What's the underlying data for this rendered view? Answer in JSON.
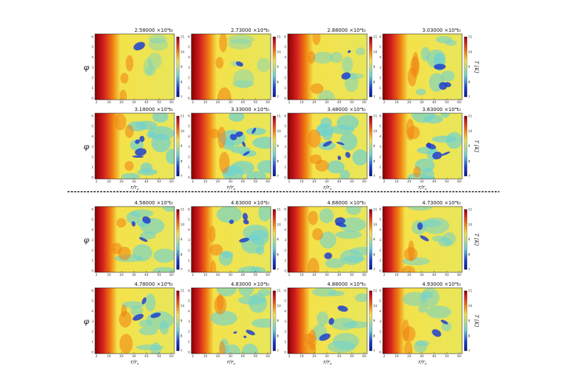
{
  "chart_data": {
    "type": "heatmap",
    "description_units": {
      "x": "r/r_s",
      "y": "phi",
      "color": "T [K]"
    },
    "xlabel": "r/r",
    "xlabel_sub": "s",
    "ylabel": "φ",
    "colorbar_label": "T [K]",
    "xticks": [
      "2",
      "10",
      "20",
      "30",
      "40",
      "50",
      "60"
    ],
    "yticks": [
      "0",
      "1",
      "2",
      "3",
      "4",
      "5",
      "6"
    ],
    "colorbar_ticks": [
      "7",
      "8",
      "9",
      "10",
      "11"
    ],
    "time_unit_suffix": "×10⁴t₀",
    "separator": "dotted",
    "panels": [
      {
        "title": "2.58000",
        "time": 2.58,
        "group": "top",
        "cold": 0.1
      },
      {
        "title": "2.73000",
        "time": 2.73,
        "group": "top",
        "cold": 0.15
      },
      {
        "title": "2.88000",
        "time": 2.88,
        "group": "top",
        "cold": 0.3
      },
      {
        "title": "3.03000",
        "time": 3.03,
        "group": "top",
        "cold": 0.5
      },
      {
        "title": "3.18000",
        "time": 3.18,
        "group": "top",
        "cold": 0.7
      },
      {
        "title": "3.33000",
        "time": 3.33,
        "group": "top",
        "cold": 0.75
      },
      {
        "title": "3.48000",
        "time": 3.48,
        "group": "top",
        "cold": 0.7
      },
      {
        "title": "3.63000",
        "time": 3.63,
        "group": "top",
        "cold": 0.65
      },
      {
        "title": "4.58000",
        "time": 4.58,
        "group": "bottom",
        "cold": 0.55
      },
      {
        "title": "4.63000",
        "time": 4.63,
        "group": "bottom",
        "cold": 0.6
      },
      {
        "title": "4.68000",
        "time": 4.68,
        "group": "bottom",
        "cold": 0.5
      },
      {
        "title": "4.73000",
        "time": 4.73,
        "group": "bottom",
        "cold": 0.4
      },
      {
        "title": "4.78000",
        "time": 4.78,
        "group": "bottom",
        "cold": 0.5
      },
      {
        "title": "4.83000",
        "time": 4.83,
        "group": "bottom",
        "cold": 0.55
      },
      {
        "title": "4.88000",
        "time": 4.88,
        "group": "bottom",
        "cold": 0.45
      },
      {
        "title": "4.93000",
        "time": 4.93,
        "group": "bottom",
        "cold": 0.4
      }
    ],
    "colors": {
      "hot": "#8b0000",
      "red": "#d42020",
      "orange": "#f07f10",
      "yellow": "#f4e24a",
      "cyan": "#6fd2d0",
      "blue": "#1f3fcf",
      "deep": "#0b1a8a"
    }
  }
}
